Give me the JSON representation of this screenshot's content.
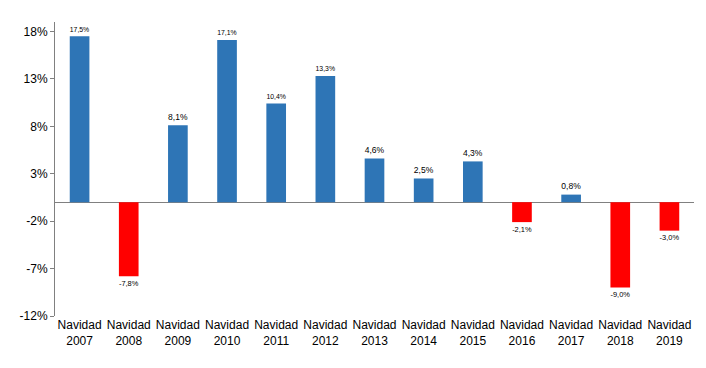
{
  "chart_data": {
    "type": "bar",
    "categories": [
      "Navidad 2007",
      "Navidad 2008",
      "Navidad 2009",
      "Navidad 2010",
      "Navidad 2011",
      "Navidad 2012",
      "Navidad 2013",
      "Navidad 2014",
      "Navidad 2015",
      "Navidad 2016",
      "Navidad 2017",
      "Navidad 2018",
      "Navidad 2019"
    ],
    "values": [
      17.5,
      -7.8,
      8.1,
      17.1,
      10.4,
      13.3,
      4.6,
      2.5,
      4.3,
      -2.1,
      0.8,
      -9.0,
      -3.0
    ],
    "value_labels": [
      "17,5%",
      "-7,8%",
      "8,1%",
      "17,1%",
      "10,4%",
      "13,3%",
      "4,6%",
      "2,5%",
      "4,3%",
      "-2,1%",
      "0,8%",
      "-9,0%",
      "-3,0%"
    ],
    "colors": [
      "#2e75b6",
      "#ff0000",
      "#2e75b6",
      "#2e75b6",
      "#2e75b6",
      "#2e75b6",
      "#2e75b6",
      "#2e75b6",
      "#2e75b6",
      "#ff0000",
      "#2e75b6",
      "#ff0000",
      "#ff0000"
    ],
    "data_labels": true,
    "ylim": [
      -12,
      19
    ],
    "yticks": [
      {
        "value": -12,
        "label": "-12%"
      },
      {
        "value": -7,
        "label": "-7%"
      },
      {
        "value": -2,
        "label": "-2%"
      },
      {
        "value": 3,
        "label": "3%"
      },
      {
        "value": 8,
        "label": "8%"
      },
      {
        "value": 13,
        "label": "13%"
      },
      {
        "value": 18,
        "label": "18%"
      }
    ],
    "grid": false
  }
}
